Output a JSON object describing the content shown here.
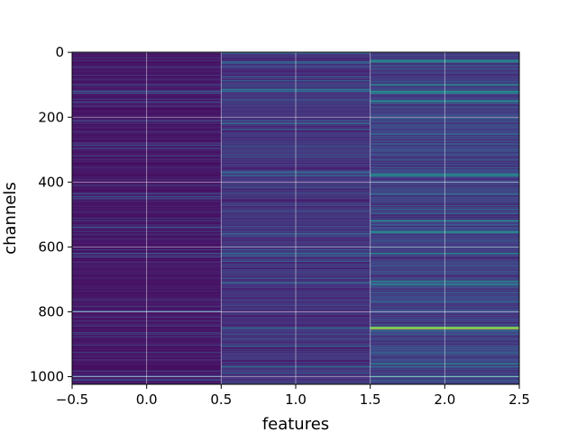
{
  "chart_data": {
    "type": "heatmap",
    "title": "",
    "xlabel": "features",
    "ylabel": "channels",
    "columns": [
      0,
      1,
      2
    ],
    "rows": 1024,
    "xlim": [
      -0.5,
      2.5
    ],
    "ylim": [
      1023.5,
      -0.5
    ],
    "y_inverted": true,
    "xticks": [
      "−0.5",
      "0.0",
      "0.5",
      "1.0",
      "1.5",
      "2.0",
      "2.5"
    ],
    "xtick_values": [
      -0.5,
      0.0,
      0.5,
      1.0,
      1.5,
      2.0,
      2.5
    ],
    "yticks": [
      "0",
      "200",
      "400",
      "600",
      "800",
      "1000"
    ],
    "ytick_values": [
      0,
      200,
      400,
      600,
      800,
      1000
    ],
    "grid": true,
    "colormap": "viridis",
    "colormap_stops": [
      "#440154",
      "#482878",
      "#3e4989",
      "#31688e",
      "#26828e",
      "#1f9e89",
      "#35b779",
      "#6ece58",
      "#b5de2b",
      "#fde725"
    ],
    "approx_high_values": [
      {
        "column": 0,
        "rows": [
          120,
          125,
          540,
          620,
          800,
          1000,
          1010
        ],
        "level": 0.3
      },
      {
        "column": 1,
        "rows": [
          30,
          115,
          120,
          370,
          380,
          560,
          620,
          710,
          850,
          970
        ],
        "level": 0.4
      },
      {
        "column": 2,
        "rows": [
          25,
          30,
          100,
          120,
          125,
          150,
          375,
          380,
          520,
          555,
          620,
          705,
          715,
          960,
          1000
        ],
        "level": 0.55
      },
      {
        "column": 2,
        "rows": [
          848,
          852
        ],
        "level": 0.95
      }
    ],
    "background_level_by_column": [
      0.05,
      0.12,
      0.16
    ]
  }
}
